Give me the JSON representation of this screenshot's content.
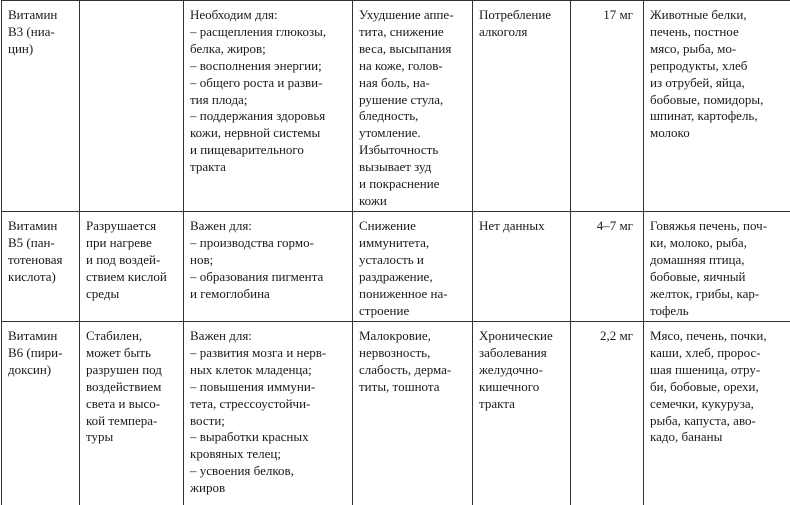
{
  "table": {
    "rows": [
      [
        [
          "Витамин",
          "В3 (ниа-",
          "цин)"
        ],
        [],
        [
          "Необходим для:",
          "– расщепления глюкозы,",
          "белка, жиров;",
          "– восполнения энергии;",
          "– общего роста и разви-",
          "тия плода;",
          "– поддержания здоровья",
          "кожи, нервной системы",
          "и пищеварительного",
          "тракта"
        ],
        [
          "Ухудшение аппе-",
          "тита, снижение",
          "веса, высыпания",
          "на коже, голов-",
          "ная боль, на-",
          "рушение стула,",
          "бледность,",
          "утомление.",
          "Избыточность",
          "вызывает зуд",
          "и покраснение",
          "кожи"
        ],
        [
          "Потребление",
          "алкоголя"
        ],
        [
          "17 мг"
        ],
        [
          "Животные белки,",
          "печень, постное",
          "мясо, рыба, мо-",
          "репродукты, хлеб",
          "из отрубей, яйца,",
          "бобовые, помидоры,",
          "шпинат, картофель,",
          "молоко"
        ]
      ],
      [
        [
          "Витамин",
          "В5 (пан-",
          "тотеновая",
          "кислота)"
        ],
        [
          "Разрушается",
          "при нагреве",
          "и под воздей-",
          "ствием кислой",
          "среды"
        ],
        [
          "Важен для:",
          "– производства гормо-",
          "нов;",
          "– образования пигмента",
          "и гемоглобина"
        ],
        [
          "Снижение",
          "иммунитета,",
          "усталость и",
          "раздражение,",
          "пониженное на-",
          "строение"
        ],
        [
          "Нет данных"
        ],
        [
          "4–7 мг"
        ],
        [
          "Говяжья печень, поч-",
          "ки, молоко, рыба,",
          "домашняя птица,",
          "бобовые, яичный",
          "желток, грибы, кар-",
          "тофель"
        ]
      ],
      [
        [
          "Витамин",
          "В6 (пири-",
          "доксин)"
        ],
        [
          "Стабилен,",
          "может быть",
          "разрушен под",
          "воздействием",
          "света и высо-",
          "кой темпера-",
          "туры"
        ],
        [
          "Важен для:",
          "– развития мозга и нерв-",
          "ных клеток младенца;",
          "– повышения иммуни-",
          "тета, стрессоустойчи-",
          "вости;",
          "– выработки красных",
          "кровяных телец;",
          "– усвоения белков,",
          "жиров"
        ],
        [
          "Малокровие,",
          "нервозность,",
          "слабость, дерма-",
          "титы, тошнота"
        ],
        [
          "Хронические",
          "заболевания",
          "желудочно-",
          "кишечного",
          "тракта"
        ],
        [
          "2,2 мг"
        ],
        [
          "Мясо, печень, почки,",
          "каши, хлеб, пророс-",
          "шая пшеница, отру-",
          "би, бобовые, орехи,",
          "семечки, кукуруза,",
          "рыба, капуста, аво-",
          "кадо, бананы"
        ]
      ]
    ]
  }
}
